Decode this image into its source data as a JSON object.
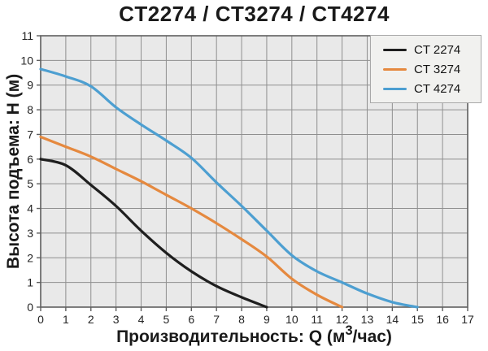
{
  "title": "CT2274 / CT3274 / CT4274",
  "y_axis": {
    "label": "Высота подъема: Н (м)"
  },
  "x_axis": {
    "label_prefix": "Производительность: Q (м",
    "label_sup": "3",
    "label_suffix": "/час)"
  },
  "legend": {
    "items": [
      {
        "label": "CT 2274",
        "color": "#1f1f1f"
      },
      {
        "label": "CT 3274",
        "color": "#e5893f"
      },
      {
        "label": "CT 4274",
        "color": "#4d9fd1"
      }
    ]
  },
  "chart_data": {
    "type": "line",
    "title": "CT2274 / CT3274 / CT4274",
    "xlabel": "Производительность: Q (м3/час)",
    "ylabel": "Высота подъема: Н (м)",
    "xlim": [
      0,
      17
    ],
    "ylim": [
      0,
      11
    ],
    "x_ticks": [
      0,
      1,
      2,
      3,
      4,
      5,
      6,
      7,
      8,
      9,
      10,
      11,
      12,
      13,
      14,
      15,
      16,
      17
    ],
    "y_ticks": [
      0,
      1,
      2,
      3,
      4,
      5,
      6,
      7,
      8,
      9,
      10,
      11
    ],
    "grid": true,
    "legend_position": "top-right",
    "series": [
      {
        "name": "CT 2274",
        "id": "ct2274",
        "color": "#1f1f1f",
        "points": [
          [
            0,
            6.0
          ],
          [
            1,
            5.75
          ],
          [
            2,
            4.95
          ],
          [
            3,
            4.1
          ],
          [
            4,
            3.1
          ],
          [
            5,
            2.2
          ],
          [
            6,
            1.45
          ],
          [
            7,
            0.85
          ],
          [
            8,
            0.4
          ],
          [
            9,
            0
          ]
        ]
      },
      {
        "name": "CT 3274",
        "id": "ct3274",
        "color": "#e5893f",
        "points": [
          [
            0,
            6.9
          ],
          [
            1,
            6.5
          ],
          [
            2,
            6.1
          ],
          [
            3,
            5.6
          ],
          [
            4,
            5.1
          ],
          [
            5,
            4.55
          ],
          [
            6,
            4.0
          ],
          [
            7,
            3.4
          ],
          [
            8,
            2.75
          ],
          [
            9,
            2.05
          ],
          [
            10,
            1.15
          ],
          [
            11,
            0.5
          ],
          [
            12,
            0
          ]
        ]
      },
      {
        "name": "CT 4274",
        "id": "ct4274",
        "color": "#4d9fd1",
        "points": [
          [
            0,
            9.65
          ],
          [
            1,
            9.35
          ],
          [
            2,
            8.95
          ],
          [
            3,
            8.1
          ],
          [
            4,
            7.4
          ],
          [
            5,
            6.75
          ],
          [
            6,
            6.05
          ],
          [
            7,
            5.05
          ],
          [
            8,
            4.1
          ],
          [
            9,
            3.1
          ],
          [
            10,
            2.1
          ],
          [
            11,
            1.45
          ],
          [
            12,
            1.0
          ],
          [
            13,
            0.55
          ],
          [
            14,
            0.2
          ],
          [
            15,
            0
          ]
        ]
      }
    ],
    "colors": {
      "plot_bg": "#e9e9e9",
      "grid": "#8f8f8f",
      "axis": "#5f5f5f"
    }
  }
}
